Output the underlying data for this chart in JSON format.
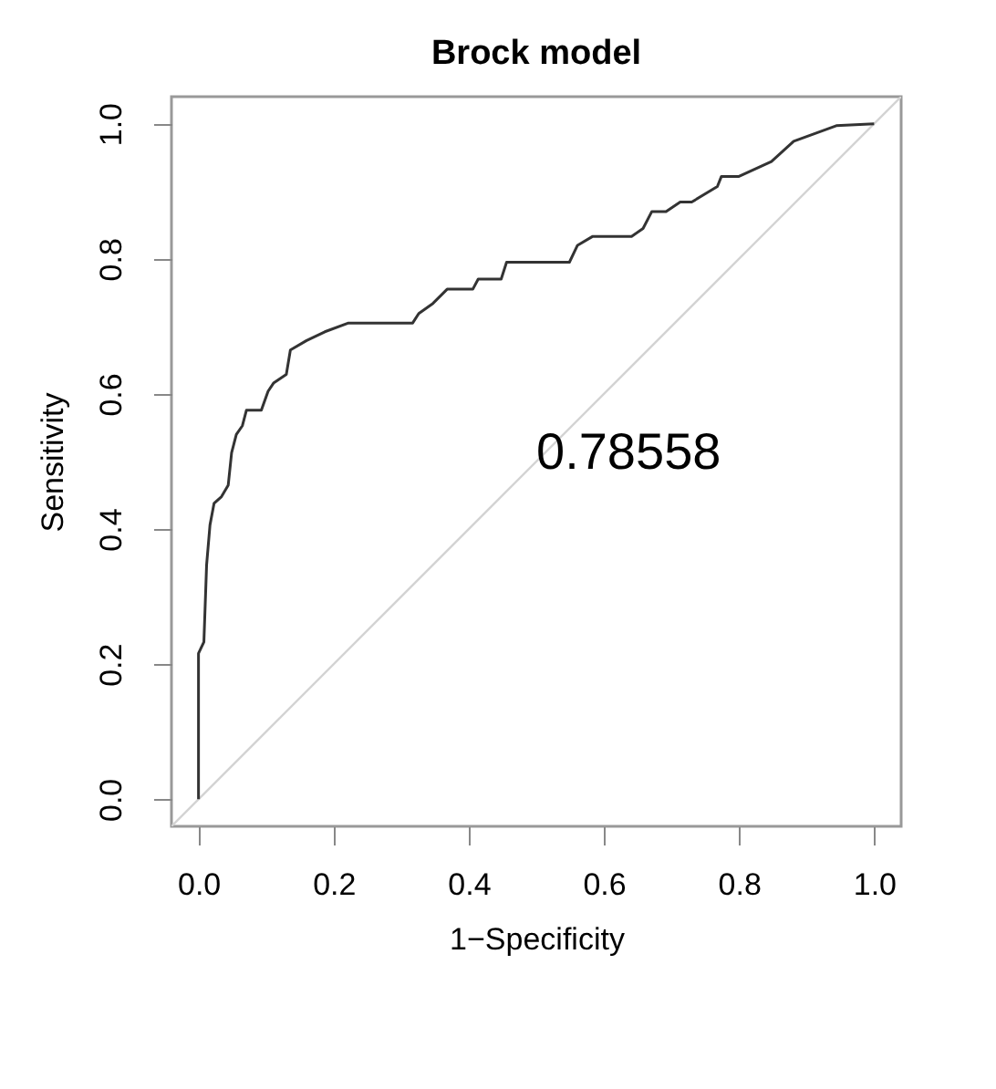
{
  "chart_data": {
    "type": "line",
    "title": "Brock model",
    "xlabel": "1−Specificity",
    "ylabel": "Sensitivity",
    "annotations": [
      "0.78558"
    ],
    "xlim": [
      -0.04,
      1.04
    ],
    "ylim": [
      -0.04,
      1.04
    ],
    "xticks": [
      {
        "value": 0,
        "label": "0.0"
      },
      0.2,
      0.4,
      0.6,
      0.8,
      {
        "value": 1,
        "label": "1.0"
      }
    ],
    "yticks": [
      {
        "value": 0,
        "label": "0.0"
      },
      0.2,
      0.4,
      0.6,
      0.8,
      {
        "value": 1,
        "label": "1.0"
      }
    ],
    "grid": false,
    "marker": "none",
    "line_style": "solid",
    "series": [
      {
        "color": "#d3d3d3",
        "x": [
          -0.04,
          1.04
        ],
        "values": [
          -0.04,
          1.04
        ]
      },
      {
        "color": "#333333",
        "x": [
          0.0,
          0.0,
          0.008,
          0.012,
          0.017,
          0.023,
          0.034,
          0.044,
          0.049,
          0.056,
          0.065,
          0.071,
          0.093,
          0.103,
          0.111,
          0.13,
          0.136,
          0.16,
          0.187,
          0.222,
          0.317,
          0.326,
          0.347,
          0.368,
          0.406,
          0.414,
          0.448,
          0.456,
          0.549,
          0.561,
          0.583,
          0.641,
          0.658,
          0.671,
          0.692,
          0.713,
          0.73,
          0.768,
          0.774,
          0.8,
          0.848,
          0.881,
          0.944,
          1.0
        ],
        "values": [
          0.0,
          0.216,
          0.233,
          0.347,
          0.406,
          0.438,
          0.448,
          0.465,
          0.513,
          0.54,
          0.553,
          0.576,
          0.576,
          0.604,
          0.616,
          0.629,
          0.665,
          0.679,
          0.692,
          0.705,
          0.705,
          0.719,
          0.734,
          0.755,
          0.755,
          0.77,
          0.77,
          0.795,
          0.795,
          0.82,
          0.833,
          0.833,
          0.845,
          0.87,
          0.87,
          0.884,
          0.884,
          0.907,
          0.922,
          0.922,
          0.944,
          0.974,
          0.997,
          1.0
        ]
      }
    ]
  }
}
